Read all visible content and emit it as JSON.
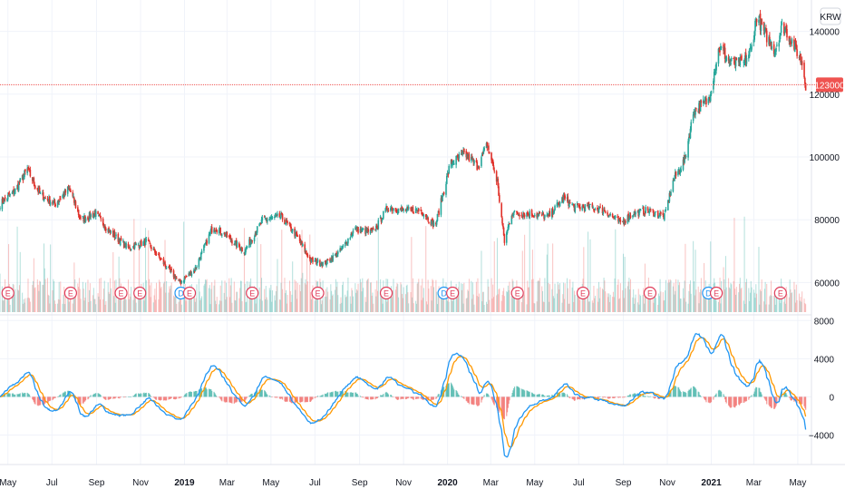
{
  "header": {
    "currency": "KRW"
  },
  "price_label": {
    "text": "123000",
    "color": "#ef5350"
  },
  "colors": {
    "up": "#26a69a",
    "down": "#e0312a",
    "macd": "#2196f3",
    "signal": "#ff9800",
    "hist_up": "#26a69a",
    "hist_down": "#ef5350",
    "grid": "#f0f3fa"
  },
  "event_markers": [
    {
      "label": "E",
      "date": "2018-05-01",
      "color": "#e03c5a"
    },
    {
      "label": "E",
      "date": "2018-07-27",
      "color": "#e03c5a"
    },
    {
      "label": "E",
      "date": "2018-10-05",
      "color": "#e03c5a"
    },
    {
      "label": "E",
      "date": "2018-10-31",
      "color": "#e03c5a"
    },
    {
      "label": "D",
      "date": "2018-12-27",
      "color": "#2196f3"
    },
    {
      "label": "E",
      "date": "2019-01-08",
      "color": "#e03c5a"
    },
    {
      "label": "E",
      "date": "2019-04-05",
      "color": "#e03c5a"
    },
    {
      "label": "E",
      "date": "2019-07-05",
      "color": "#e03c5a"
    },
    {
      "label": "E",
      "date": "2019-10-08",
      "color": "#e03c5a"
    },
    {
      "label": "D",
      "date": "2019-12-27",
      "color": "#2196f3"
    },
    {
      "label": "E",
      "date": "2020-01-08",
      "color": "#e03c5a"
    },
    {
      "label": "E",
      "date": "2020-04-07",
      "color": "#e03c5a"
    },
    {
      "label": "E",
      "date": "2020-07-07",
      "color": "#e03c5a"
    },
    {
      "label": "E",
      "date": "2020-10-08",
      "color": "#e03c5a"
    },
    {
      "label": "D",
      "date": "2020-12-28",
      "color": "#2196f3"
    },
    {
      "label": "E",
      "date": "2021-01-08",
      "color": "#e03c5a"
    },
    {
      "label": "E",
      "date": "2021-04-07",
      "color": "#e03c5a"
    }
  ],
  "chart_data": [
    {
      "type": "candlestick",
      "title": "",
      "x_range": [
        "2018-04-20",
        "2021-05-20"
      ],
      "ylim": [
        50000,
        150000
      ],
      "y_ticks": [
        60000,
        80000,
        100000,
        120000,
        140000
      ],
      "x_ticks": [
        "May",
        "Jul",
        "Sep",
        "Nov",
        "2019",
        "Mar",
        "May",
        "Jul",
        "Sep",
        "Nov",
        "2020",
        "Mar",
        "May",
        "Jul",
        "Sep",
        "Nov",
        "2021",
        "Mar",
        "May"
      ],
      "x_tick_dates": [
        "2018-05-01",
        "2018-07-01",
        "2018-09-01",
        "2018-11-01",
        "2019-01-01",
        "2019-03-01",
        "2019-05-01",
        "2019-07-01",
        "2019-09-01",
        "2019-11-01",
        "2020-01-01",
        "2020-03-01",
        "2020-05-01",
        "2020-07-01",
        "2020-09-01",
        "2020-11-01",
        "2021-01-01",
        "2021-03-01",
        "2021-05-01"
      ],
      "current_price": 123000,
      "price_keypoints": [
        [
          "2018-04-20",
          85000
        ],
        [
          "2018-05-10",
          89000
        ],
        [
          "2018-05-28",
          96000
        ],
        [
          "2018-06-15",
          88000
        ],
        [
          "2018-07-05",
          85000
        ],
        [
          "2018-07-25",
          90000
        ],
        [
          "2018-08-10",
          80000
        ],
        [
          "2018-08-30",
          82000
        ],
        [
          "2018-09-20",
          76000
        ],
        [
          "2018-10-15",
          71000
        ],
        [
          "2018-11-10",
          73000
        ],
        [
          "2018-11-30",
          67000
        ],
        [
          "2018-12-25",
          60000
        ],
        [
          "2019-01-15",
          64000
        ],
        [
          "2019-02-10",
          78000
        ],
        [
          "2019-03-05",
          74000
        ],
        [
          "2019-03-25",
          70000
        ],
        [
          "2019-04-20",
          80000
        ],
        [
          "2019-05-15",
          81000
        ],
        [
          "2019-06-05",
          75000
        ],
        [
          "2019-06-25",
          67000
        ],
        [
          "2019-07-15",
          66000
        ],
        [
          "2019-08-05",
          70000
        ],
        [
          "2019-08-25",
          77000
        ],
        [
          "2019-09-20",
          76000
        ],
        [
          "2019-10-10",
          84000
        ],
        [
          "2019-10-30",
          83000
        ],
        [
          "2019-11-25",
          83000
        ],
        [
          "2019-12-15",
          78000
        ],
        [
          "2020-01-05",
          98000
        ],
        [
          "2020-01-25",
          101000
        ],
        [
          "2020-02-12",
          97000
        ],
        [
          "2020-02-25",
          104000
        ],
        [
          "2020-03-10",
          92000
        ],
        [
          "2020-03-20",
          73000
        ],
        [
          "2020-03-30",
          82000
        ],
        [
          "2020-04-20",
          82000
        ],
        [
          "2020-05-20",
          81000
        ],
        [
          "2020-06-10",
          87000
        ],
        [
          "2020-06-25",
          84000
        ],
        [
          "2020-07-15",
          84000
        ],
        [
          "2020-08-05",
          83000
        ],
        [
          "2020-08-28",
          79000
        ],
        [
          "2020-09-15",
          82000
        ],
        [
          "2020-10-05",
          83000
        ],
        [
          "2020-10-28",
          81000
        ],
        [
          "2020-11-10",
          93000
        ],
        [
          "2020-11-25",
          99000
        ],
        [
          "2020-12-08",
          115000
        ],
        [
          "2020-12-28",
          118000
        ],
        [
          "2021-01-12",
          135000
        ],
        [
          "2021-01-28",
          130000
        ],
        [
          "2021-02-15",
          130000
        ],
        [
          "2021-02-25",
          134000
        ],
        [
          "2021-03-05",
          145000
        ],
        [
          "2021-03-15",
          140000
        ],
        [
          "2021-03-30",
          134000
        ],
        [
          "2021-04-10",
          142000
        ],
        [
          "2021-04-25",
          136000
        ],
        [
          "2021-05-07",
          130000
        ],
        [
          "2021-05-12",
          123000
        ]
      ]
    },
    {
      "type": "line",
      "indicator": "MACD",
      "ylim": [
        -7000,
        8500
      ],
      "y_ticks": [
        -4000,
        0,
        4000,
        8000
      ],
      "y_tick_labels": [
        "−4000",
        "0",
        "4000",
        "8000"
      ],
      "series": [
        {
          "role": "macd",
          "color": "#2196f3"
        },
        {
          "role": "signal",
          "color": "#ff9800"
        },
        {
          "role": "histogram",
          "colors": [
            "#26a69a",
            "#ef5350"
          ]
        }
      ]
    }
  ]
}
